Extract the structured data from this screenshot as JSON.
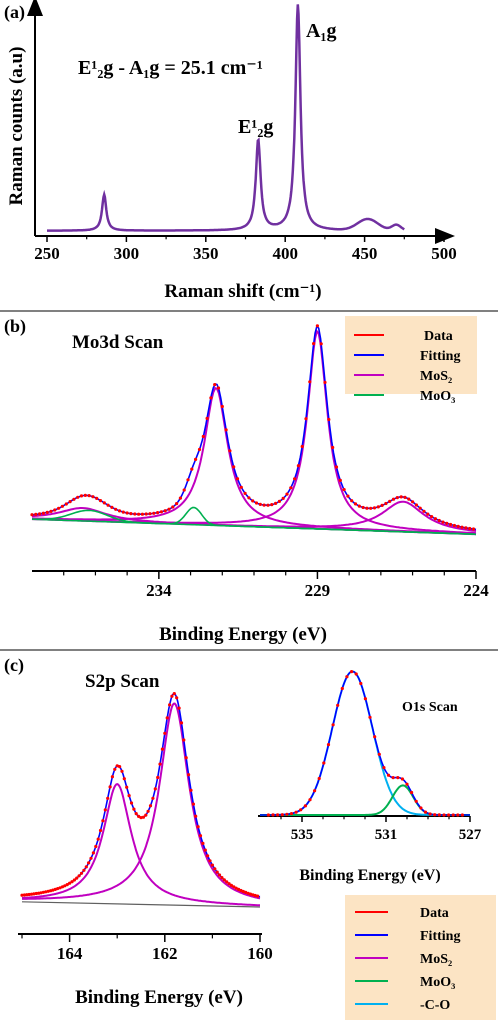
{
  "colors": {
    "raman": "#7030A0",
    "data": "#FF0000",
    "fitting": "#0000FF",
    "mos2": "#C000C0",
    "moo3": "#00B050",
    "cco": "#00B0F0",
    "legend_bg": "#FCE4C4",
    "baseline": "#606060"
  },
  "chart_data": [
    {
      "panel": "(a)",
      "type": "line",
      "xlabel": "Raman shift (cm⁻¹)",
      "ylabel": "Raman counts (a.u)",
      "xlim": [
        250,
        500
      ],
      "xticks": [
        "250",
        "300",
        "350",
        "400",
        "450",
        "500"
      ],
      "annotation": "E¹₂g - A₁g = 25.1 cm⁻¹",
      "peak_labels": [
        {
          "text": "E¹₂g",
          "x": 383
        },
        {
          "text": "A₁g",
          "x": 408
        }
      ],
      "peaks": [
        {
          "x": 286,
          "height": 0.16
        },
        {
          "x": 383,
          "height": 0.4
        },
        {
          "x": 408,
          "height": 1.0
        },
        {
          "x": 452,
          "height": 0.05
        }
      ]
    },
    {
      "panel": "(b)",
      "type": "line",
      "title": "Mo3d Scan",
      "xlabel": "Binding Energy (eV)",
      "xlim": [
        238,
        224
      ],
      "xticks": [
        "234",
        "229",
        "224"
      ],
      "legend": [
        "Data",
        "Fitting",
        "MoS₂",
        "MoO₃"
      ],
      "components": [
        {
          "series": "MoS₂",
          "center": 232.2,
          "height": 0.64
        },
        {
          "series": "MoS₂",
          "center": 229.0,
          "height": 0.92
        },
        {
          "series": "MoS₂",
          "center": 226.3,
          "height": 0.14
        },
        {
          "series": "MoS₂",
          "center": 236.4,
          "height": 0.06
        },
        {
          "series": "MoO₃",
          "center": 232.9,
          "height": 0.08
        },
        {
          "series": "MoO₃",
          "center": 236.2,
          "height": 0.05
        }
      ]
    },
    {
      "panel": "(c)",
      "type": "line",
      "title": "S2p Scan",
      "xlabel": "Binding Energy (eV)",
      "xlim": [
        165,
        160
      ],
      "xticks": [
        "164",
        "162",
        "160"
      ],
      "legend": [
        "Data",
        "Fitting",
        "MoS₂",
        "MoO₃",
        "-C-O"
      ],
      "components": [
        {
          "series": "MoS₂",
          "center": 163.0,
          "height": 0.57
        },
        {
          "series": "MoS₂",
          "center": 161.8,
          "height": 0.96
        }
      ]
    },
    {
      "panel": "(c) inset",
      "type": "line",
      "title": "O1s Scan",
      "xlabel": "Binding Energy (eV)",
      "xlim": [
        537,
        527
      ],
      "xticks": [
        "535",
        "531",
        "527"
      ],
      "components": [
        {
          "series": "-C-O",
          "center": 532.6,
          "height": 0.97
        },
        {
          "series": "MoO₃",
          "center": 530.2,
          "height": 0.2
        }
      ]
    }
  ]
}
